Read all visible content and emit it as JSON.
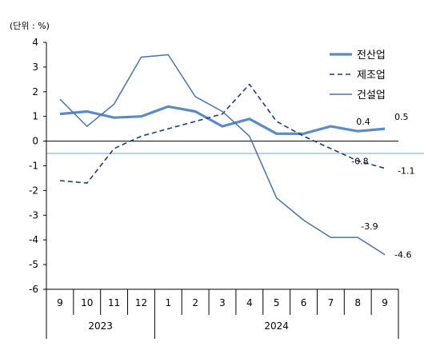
{
  "chart_data": {
    "type": "line",
    "unit_label": "(단위 : %)",
    "ylim": [
      -6,
      4
    ],
    "yticks": [
      "4",
      "3",
      "2",
      "1",
      "0",
      "-1",
      "-2",
      "-3",
      "-4",
      "-5",
      "-6"
    ],
    "categories": [
      "9",
      "10",
      "11",
      "12",
      "1",
      "2",
      "3",
      "4",
      "5",
      "6",
      "7",
      "8",
      "9"
    ],
    "years": [
      {
        "label": "2023",
        "span": [
          0,
          3
        ]
      },
      {
        "label": "2024",
        "span": [
          4,
          12
        ]
      }
    ],
    "reference_line": -0.5,
    "series": [
      {
        "name": "전산업",
        "style": "solid-thick",
        "color": "#5b8ac4",
        "values": [
          1.1,
          1.2,
          0.95,
          1.0,
          1.4,
          1.2,
          0.6,
          0.9,
          0.3,
          0.3,
          0.6,
          0.4,
          0.5
        ],
        "labels": [
          {
            "index": 11,
            "text": "0.4"
          },
          {
            "index": 12,
            "text": "0.5"
          }
        ]
      },
      {
        "name": "제조업",
        "style": "dashed",
        "color": "#1f3e75",
        "values": [
          -1.6,
          -1.7,
          -0.3,
          0.2,
          0.5,
          0.8,
          1.1,
          2.3,
          0.8,
          0.2,
          -0.3,
          -0.8,
          -1.1
        ],
        "labels": [
          {
            "index": 11,
            "text": "-0.8"
          },
          {
            "index": 12,
            "text": "-1.1"
          }
        ]
      },
      {
        "name": "건설업",
        "style": "solid-thin",
        "color": "#4a72a8",
        "values": [
          1.7,
          0.6,
          1.5,
          3.4,
          3.5,
          1.8,
          1.2,
          0.2,
          -2.3,
          -3.2,
          -3.9,
          -3.9,
          -4.6
        ],
        "labels": [
          {
            "index": 11,
            "text": "-3.9"
          },
          {
            "index": 12,
            "text": "-4.6"
          }
        ]
      }
    ]
  }
}
